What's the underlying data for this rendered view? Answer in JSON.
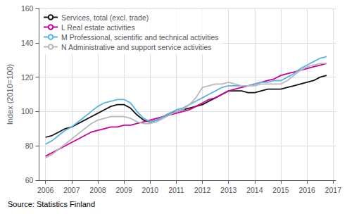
{
  "chart_data": {
    "type": "line",
    "ylabel": "Index (2010=100)",
    "source": "Source: Statistics Finland",
    "xlim": [
      2005.75,
      2017.1
    ],
    "ylim": [
      60,
      160
    ],
    "xticks": [
      2006,
      2007,
      2008,
      2009,
      2010,
      2011,
      2012,
      2013,
      2014,
      2015,
      2016,
      2017
    ],
    "yticks": [
      60,
      80,
      100,
      120,
      140,
      160
    ],
    "grid": true,
    "legend": "upper left",
    "x": [
      2006.0,
      2006.25,
      2006.5,
      2006.75,
      2007.0,
      2007.25,
      2007.5,
      2007.75,
      2008.0,
      2008.25,
      2008.5,
      2008.75,
      2009.0,
      2009.25,
      2009.5,
      2009.75,
      2010.0,
      2010.25,
      2010.5,
      2010.75,
      2011.0,
      2011.25,
      2011.5,
      2011.75,
      2012.0,
      2012.25,
      2012.5,
      2012.75,
      2013.0,
      2013.25,
      2013.5,
      2013.75,
      2014.0,
      2014.25,
      2014.5,
      2014.75,
      2015.0,
      2015.25,
      2015.5,
      2015.75,
      2016.0,
      2016.25,
      2016.5,
      2016.75
    ],
    "series": [
      {
        "name": "Services, total (excl. trade)",
        "color": "#111111",
        "values": [
          85,
          86,
          88,
          90,
          91,
          93,
          95,
          97,
          99,
          101,
          103,
          104,
          104,
          102,
          98,
          95,
          94,
          95,
          97,
          99,
          100,
          101,
          102,
          103,
          104,
          106,
          108,
          110,
          112,
          112,
          112,
          111,
          111,
          112,
          113,
          113,
          113,
          114,
          115,
          116,
          117,
          118,
          120,
          121
        ]
      },
      {
        "name": "L Real estate activities",
        "color": "#cc0099",
        "values": [
          74,
          76,
          78,
          80,
          82,
          84,
          86,
          88,
          89,
          90,
          91,
          91,
          92,
          92,
          93,
          94,
          95,
          96,
          97,
          98,
          99,
          100,
          101,
          103,
          105,
          107,
          108,
          110,
          112,
          113,
          114,
          115,
          116,
          117,
          118,
          119,
          121,
          122,
          123,
          124,
          125,
          126,
          127,
          128
        ]
      },
      {
        "name": "M Professional, scientific and technical activities",
        "color": "#5ab4e5",
        "values": [
          81,
          83,
          86,
          89,
          91,
          94,
          97,
          100,
          103,
          105,
          106,
          107,
          107,
          105,
          100,
          96,
          94,
          95,
          97,
          99,
          101,
          102,
          104,
          106,
          108,
          110,
          112,
          114,
          115,
          115,
          115,
          115,
          116,
          117,
          117,
          118,
          118,
          120,
          122,
          125,
          127,
          129,
          131,
          132
        ]
      },
      {
        "name": "N Administrative and support service activities",
        "color": "#b8b8b8",
        "values": [
          73,
          75,
          78,
          81,
          84,
          87,
          90,
          93,
          95,
          96,
          97,
          97,
          97,
          96,
          94,
          93,
          93,
          94,
          96,
          98,
          100,
          101,
          104,
          108,
          114,
          115,
          116,
          116,
          117,
          116,
          115,
          115,
          115,
          116,
          116,
          116,
          116,
          118,
          121,
          124,
          126,
          127,
          128,
          128
        ]
      }
    ]
  }
}
